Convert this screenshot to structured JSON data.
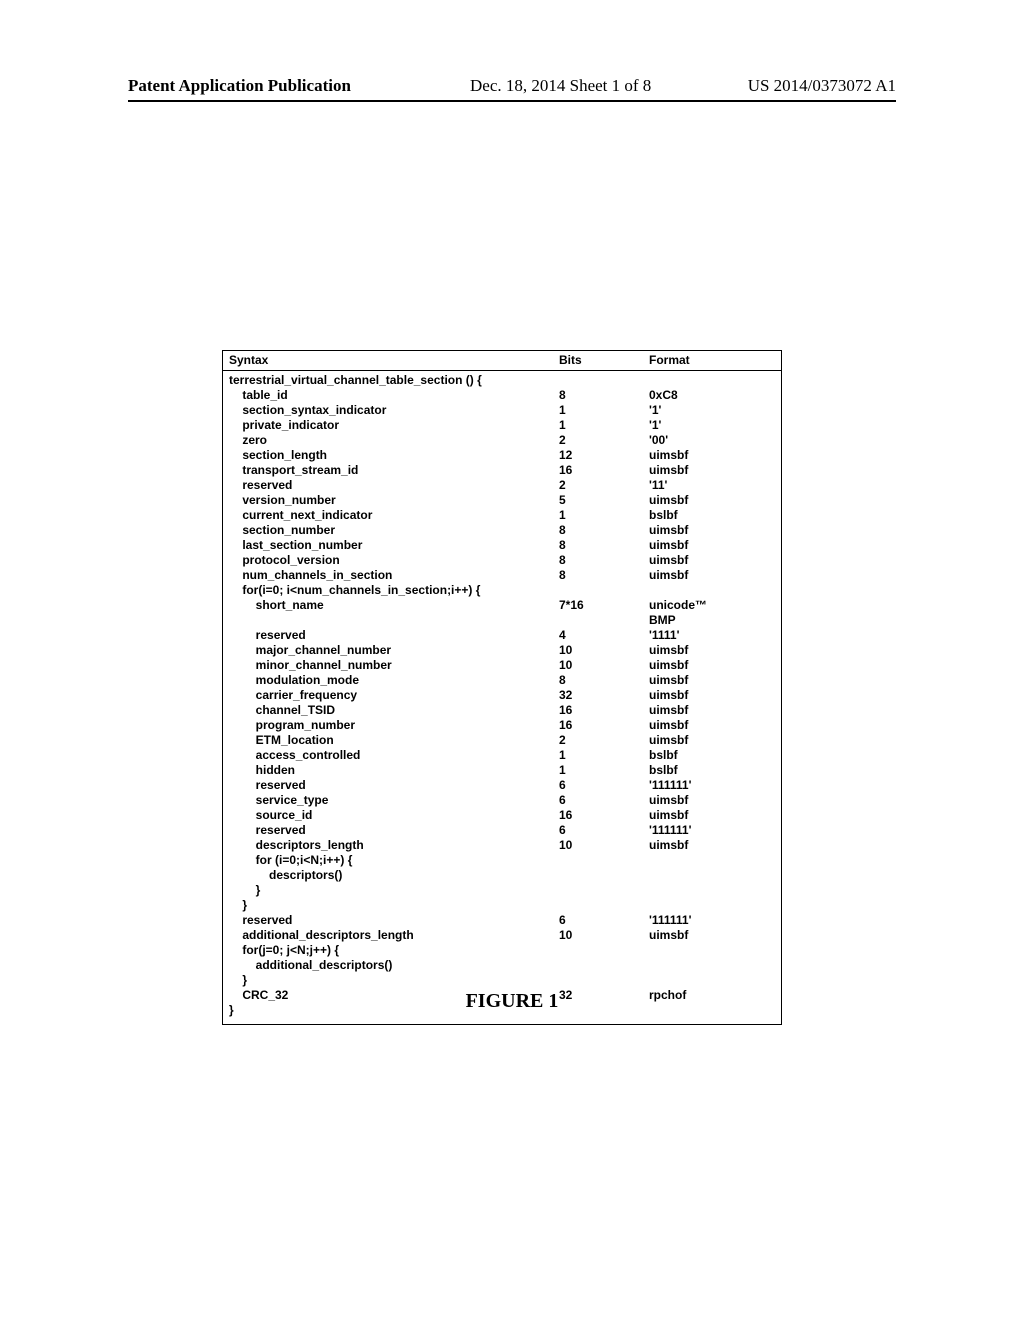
{
  "header": {
    "left": "Patent Application Publication",
    "center": "Dec. 18, 2014  Sheet 1 of 8",
    "right": "US 2014/0373072 A1"
  },
  "table": {
    "head": {
      "syntax": "Syntax",
      "bits": "Bits",
      "format": "Format"
    },
    "rows": [
      {
        "syntax": "terrestrial_virtual_channel_table_section () {",
        "bits": "",
        "format": ""
      },
      {
        "syntax": "    table_id",
        "bits": "8",
        "format": "0xC8"
      },
      {
        "syntax": "    section_syntax_indicator",
        "bits": "1",
        "format": "'1'"
      },
      {
        "syntax": "    private_indicator",
        "bits": "1",
        "format": "'1'"
      },
      {
        "syntax": "    zero",
        "bits": "2",
        "format": "'00'"
      },
      {
        "syntax": "    section_length",
        "bits": "12",
        "format": "uimsbf"
      },
      {
        "syntax": "    transport_stream_id",
        "bits": "16",
        "format": "uimsbf"
      },
      {
        "syntax": "    reserved",
        "bits": "2",
        "format": "'11'"
      },
      {
        "syntax": "    version_number",
        "bits": "5",
        "format": "uimsbf"
      },
      {
        "syntax": "    current_next_indicator",
        "bits": "1",
        "format": "bslbf"
      },
      {
        "syntax": "    section_number",
        "bits": "8",
        "format": "uimsbf"
      },
      {
        "syntax": "    last_section_number",
        "bits": "8",
        "format": "uimsbf"
      },
      {
        "syntax": "    protocol_version",
        "bits": "8",
        "format": "uimsbf"
      },
      {
        "syntax": "    num_channels_in_section",
        "bits": "8",
        "format": "uimsbf"
      },
      {
        "syntax": "    for(i=0; i<num_channels_in_section;i++) {",
        "bits": "",
        "format": ""
      },
      {
        "syntax": "        short_name",
        "bits": "7*16",
        "format": "unicode™"
      },
      {
        "syntax": "",
        "bits": "",
        "format": "BMP"
      },
      {
        "syntax": "        reserved",
        "bits": "4",
        "format": "'1111'"
      },
      {
        "syntax": "        major_channel_number",
        "bits": "10",
        "format": "uimsbf"
      },
      {
        "syntax": "        minor_channel_number",
        "bits": "10",
        "format": "uimsbf"
      },
      {
        "syntax": "        modulation_mode",
        "bits": "8",
        "format": "uimsbf"
      },
      {
        "syntax": "        carrier_frequency",
        "bits": "32",
        "format": "uimsbf"
      },
      {
        "syntax": "        channel_TSID",
        "bits": "16",
        "format": "uimsbf"
      },
      {
        "syntax": "        program_number",
        "bits": "16",
        "format": "uimsbf"
      },
      {
        "syntax": "        ETM_location",
        "bits": "2",
        "format": "uimsbf"
      },
      {
        "syntax": "        access_controlled",
        "bits": "1",
        "format": "bslbf"
      },
      {
        "syntax": "        hidden",
        "bits": "1",
        "format": "bslbf"
      },
      {
        "syntax": "        reserved",
        "bits": "6",
        "format": "'111111'"
      },
      {
        "syntax": "        service_type",
        "bits": "6",
        "format": "uimsbf"
      },
      {
        "syntax": "        source_id",
        "bits": "16",
        "format": "uimsbf"
      },
      {
        "syntax": "        reserved",
        "bits": "6",
        "format": "'111111'"
      },
      {
        "syntax": "        descriptors_length",
        "bits": "10",
        "format": "uimsbf"
      },
      {
        "syntax": "        for (i=0;i<N;i++) {",
        "bits": "",
        "format": ""
      },
      {
        "syntax": "            descriptors()",
        "bits": "",
        "format": ""
      },
      {
        "syntax": "        }",
        "bits": "",
        "format": ""
      },
      {
        "syntax": "    }",
        "bits": "",
        "format": ""
      },
      {
        "syntax": "    reserved",
        "bits": "6",
        "format": "'111111'"
      },
      {
        "syntax": "    additional_descriptors_length",
        "bits": "10",
        "format": "uimsbf"
      },
      {
        "syntax": "    for(j=0; j<N;j++) {",
        "bits": "",
        "format": ""
      },
      {
        "syntax": "        additional_descriptors()",
        "bits": "",
        "format": ""
      },
      {
        "syntax": "    }",
        "bits": "",
        "format": ""
      },
      {
        "syntax": "    CRC_32",
        "bits": "32",
        "format": "rpchof"
      },
      {
        "syntax": "}",
        "bits": "",
        "format": ""
      }
    ]
  },
  "figure_label": "FIGURE 1"
}
